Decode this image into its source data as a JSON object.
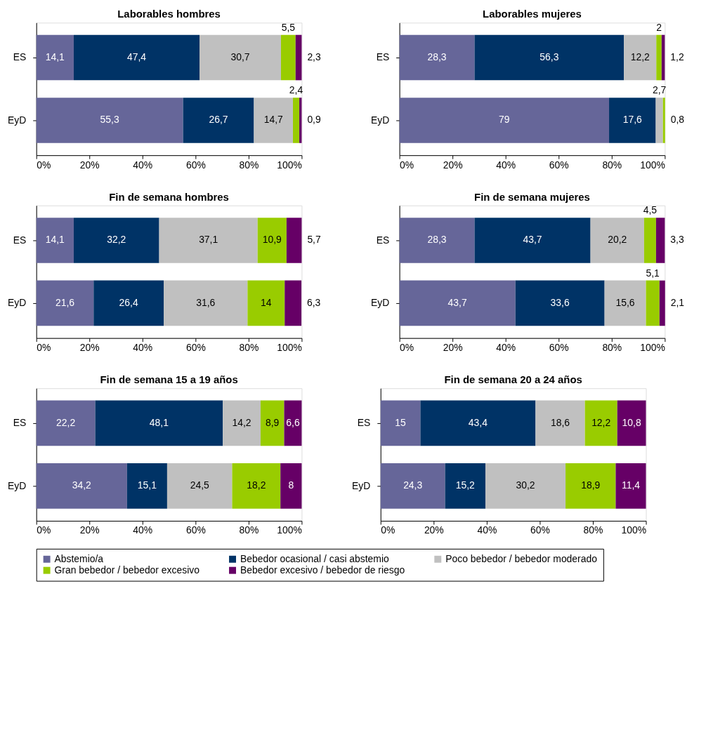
{
  "chart_data": [
    {
      "type": "bar",
      "title": "Laborables hombres",
      "stacked": true,
      "orientation": "horizontal",
      "categories": [
        "ES",
        "EyD"
      ],
      "xlim": [
        0,
        100
      ],
      "xticks": [
        {
          "value": 0,
          "label": "0%"
        },
        {
          "value": 20,
          "label": "20%"
        },
        {
          "value": 40,
          "label": "40%"
        },
        {
          "value": 60,
          "label": "60%"
        },
        {
          "value": 80,
          "label": "80%"
        },
        {
          "value": 100,
          "label": "100%"
        }
      ],
      "grid": false,
      "legend": "bottom",
      "series": [
        {
          "name": "Abstemio/a",
          "color": "#666699",
          "values": [
            14.1,
            55.3
          ],
          "value_labels": [
            "14,1",
            "55,3"
          ]
        },
        {
          "name": "Bebedor ocasional / casi abstemio",
          "color": "#003366",
          "values": [
            47.4,
            26.7
          ],
          "value_labels": [
            "47,4",
            "26,7"
          ]
        },
        {
          "name": "Poco bebedor / bebedor moderado",
          "color": "#c0c0c0",
          "values": [
            30.7,
            14.7
          ],
          "value_labels": [
            "30,7",
            "14,7"
          ]
        },
        {
          "name": "Gran bebedor / bebedor excesivo",
          "color": "#99cc00",
          "values": [
            5.5,
            2.4
          ],
          "value_labels": [
            "5,5",
            "2,4"
          ]
        },
        {
          "name": "Bebedor excesivo / bebedor de riesgo",
          "color": "#660066",
          "values": [
            2.3,
            0.9
          ],
          "value_labels": [
            "2,3",
            "0,9"
          ]
        }
      ]
    },
    {
      "type": "bar",
      "title": "Laborables mujeres",
      "stacked": true,
      "orientation": "horizontal",
      "categories": [
        "ES",
        "EyD"
      ],
      "xlim": [
        0,
        100
      ],
      "xticks": [
        {
          "value": 0,
          "label": "0%"
        },
        {
          "value": 20,
          "label": "20%"
        },
        {
          "value": 40,
          "label": "40%"
        },
        {
          "value": 60,
          "label": "60%"
        },
        {
          "value": 80,
          "label": "80%"
        },
        {
          "value": 100,
          "label": "100%"
        }
      ],
      "grid": false,
      "legend": "bottom",
      "series": [
        {
          "name": "Abstemio/a",
          "color": "#666699",
          "values": [
            28.3,
            79
          ],
          "value_labels": [
            "28,3",
            "79"
          ]
        },
        {
          "name": "Bebedor ocasional / casi abstemio",
          "color": "#003366",
          "values": [
            56.3,
            17.6
          ],
          "value_labels": [
            "56,3",
            "17,6"
          ]
        },
        {
          "name": "Poco bebedor / bebedor moderado",
          "color": "#c0c0c0",
          "values": [
            12.2,
            2.7
          ],
          "value_labels": [
            "12,2",
            "2,7"
          ]
        },
        {
          "name": "Gran bebedor / bebedor excesivo",
          "color": "#99cc00",
          "values": [
            2,
            0.8
          ],
          "value_labels": [
            "2",
            "0,8"
          ]
        },
        {
          "name": "Bebedor excesivo / bebedor de riesgo",
          "color": "#660066",
          "values": [
            1.2,
            null
          ],
          "value_labels": [
            "1,2",
            null
          ]
        }
      ]
    },
    {
      "type": "bar",
      "title": "Fin de semana hombres",
      "stacked": true,
      "orientation": "horizontal",
      "categories": [
        "ES",
        "EyD"
      ],
      "xlim": [
        0,
        100
      ],
      "xticks": [
        {
          "value": 0,
          "label": "0%"
        },
        {
          "value": 20,
          "label": "20%"
        },
        {
          "value": 40,
          "label": "40%"
        },
        {
          "value": 60,
          "label": "60%"
        },
        {
          "value": 80,
          "label": "80%"
        },
        {
          "value": 100,
          "label": "100%"
        }
      ],
      "grid": false,
      "legend": "bottom",
      "series": [
        {
          "name": "Abstemio/a",
          "color": "#666699",
          "values": [
            14.1,
            21.6
          ],
          "value_labels": [
            "14,1",
            "21,6"
          ]
        },
        {
          "name": "Bebedor ocasional / casi abstemio",
          "color": "#003366",
          "values": [
            32.2,
            26.4
          ],
          "value_labels": [
            "32,2",
            "26,4"
          ]
        },
        {
          "name": "Poco bebedor / bebedor moderado",
          "color": "#c0c0c0",
          "values": [
            37.1,
            31.6
          ],
          "value_labels": [
            "37,1",
            "31,6"
          ]
        },
        {
          "name": "Gran bebedor / bebedor excesivo",
          "color": "#99cc00",
          "values": [
            10.9,
            14
          ],
          "value_labels": [
            "10,9",
            "14"
          ]
        },
        {
          "name": "Bebedor excesivo / bebedor de riesgo",
          "color": "#660066",
          "values": [
            5.7,
            6.3
          ],
          "value_labels": [
            "5,7",
            "6,3"
          ]
        }
      ]
    },
    {
      "type": "bar",
      "title": "Fin de semana mujeres",
      "stacked": true,
      "orientation": "horizontal",
      "categories": [
        "ES",
        "EyD"
      ],
      "xlim": [
        0,
        100
      ],
      "xticks": [
        {
          "value": 0,
          "label": "0%"
        },
        {
          "value": 20,
          "label": "20%"
        },
        {
          "value": 40,
          "label": "40%"
        },
        {
          "value": 60,
          "label": "60%"
        },
        {
          "value": 80,
          "label": "80%"
        },
        {
          "value": 100,
          "label": "100%"
        }
      ],
      "grid": false,
      "legend": "bottom",
      "series": [
        {
          "name": "Abstemio/a",
          "color": "#666699",
          "values": [
            28.3,
            43.7
          ],
          "value_labels": [
            "28,3",
            "43,7"
          ]
        },
        {
          "name": "Bebedor ocasional / casi abstemio",
          "color": "#003366",
          "values": [
            43.7,
            33.6
          ],
          "value_labels": [
            "43,7",
            "33,6"
          ]
        },
        {
          "name": "Poco bebedor / bebedor moderado",
          "color": "#c0c0c0",
          "values": [
            20.2,
            15.6
          ],
          "value_labels": [
            "20,2",
            "15,6"
          ]
        },
        {
          "name": "Gran bebedor / bebedor excesivo",
          "color": "#99cc00",
          "values": [
            4.5,
            5.1
          ],
          "value_labels": [
            "4,5",
            "5,1"
          ]
        },
        {
          "name": "Bebedor excesivo / bebedor de riesgo",
          "color": "#660066",
          "values": [
            3.3,
            2.1
          ],
          "value_labels": [
            "3,3",
            "2,1"
          ]
        }
      ]
    },
    {
      "type": "bar",
      "title": "Fin de semana 15 a 19 años",
      "stacked": true,
      "orientation": "horizontal",
      "categories": [
        "ES",
        "EyD"
      ],
      "xlim": [
        0,
        100
      ],
      "xticks": [
        {
          "value": 0,
          "label": "0%"
        },
        {
          "value": 20,
          "label": "20%"
        },
        {
          "value": 40,
          "label": "40%"
        },
        {
          "value": 60,
          "label": "60%"
        },
        {
          "value": 80,
          "label": "80%"
        },
        {
          "value": 100,
          "label": "100%"
        }
      ],
      "grid": false,
      "legend": "bottom",
      "series": [
        {
          "name": "Abstemio/a",
          "color": "#666699",
          "values": [
            22.2,
            34.2
          ],
          "value_labels": [
            "22,2",
            "34,2"
          ]
        },
        {
          "name": "Bebedor ocasional / casi abstemio",
          "color": "#003366",
          "values": [
            48.1,
            15.1
          ],
          "value_labels": [
            "48,1",
            "15,1"
          ]
        },
        {
          "name": "Poco bebedor / bebedor moderado",
          "color": "#c0c0c0",
          "values": [
            14.2,
            24.5
          ],
          "value_labels": [
            "14,2",
            "24,5"
          ]
        },
        {
          "name": "Gran bebedor / bebedor excesivo",
          "color": "#99cc00",
          "values": [
            8.9,
            18.2
          ],
          "value_labels": [
            "8,9",
            "18,2"
          ]
        },
        {
          "name": "Bebedor excesivo / bebedor de riesgo",
          "color": "#660066",
          "values": [
            6.6,
            8
          ],
          "value_labels": [
            "6,6",
            "8"
          ]
        }
      ]
    },
    {
      "type": "bar",
      "title": "Fin de semana 20 a 24 años",
      "stacked": true,
      "orientation": "horizontal",
      "categories": [
        "ES",
        "EyD"
      ],
      "xlim": [
        0,
        100
      ],
      "xticks": [
        {
          "value": 0,
          "label": "0%"
        },
        {
          "value": 20,
          "label": "20%"
        },
        {
          "value": 40,
          "label": "40%"
        },
        {
          "value": 60,
          "label": "60%"
        },
        {
          "value": 80,
          "label": "80%"
        },
        {
          "value": 100,
          "label": "100%"
        }
      ],
      "grid": false,
      "legend": "bottom",
      "series": [
        {
          "name": "Abstemio/a",
          "color": "#666699",
          "values": [
            15,
            24.3
          ],
          "value_labels": [
            "15",
            "24,3"
          ]
        },
        {
          "name": "Bebedor ocasional / casi abstemio",
          "color": "#003366",
          "values": [
            43.4,
            15.2
          ],
          "value_labels": [
            "43,4",
            "15,2"
          ]
        },
        {
          "name": "Poco bebedor / bebedor moderado",
          "color": "#c0c0c0",
          "values": [
            18.6,
            30.2
          ],
          "value_labels": [
            "18,6",
            "30,2"
          ]
        },
        {
          "name": "Gran bebedor / bebedor excesivo",
          "color": "#99cc00",
          "values": [
            12.2,
            18.9
          ],
          "value_labels": [
            "12,2",
            "18,9"
          ]
        },
        {
          "name": "Bebedor excesivo / bebedor de riesgo",
          "color": "#660066",
          "values": [
            10.8,
            11.4
          ],
          "value_labels": [
            "10,8",
            "11,4"
          ]
        }
      ]
    }
  ]
}
